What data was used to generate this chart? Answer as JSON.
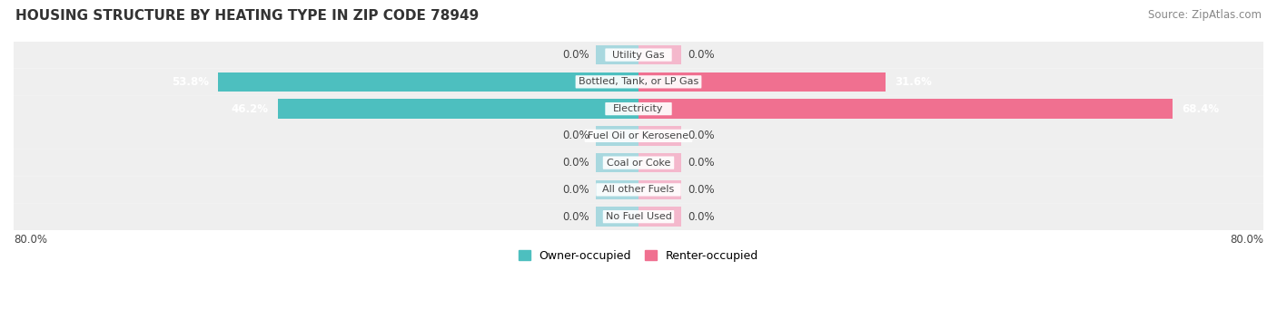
{
  "title": "HOUSING STRUCTURE BY HEATING TYPE IN ZIP CODE 78949",
  "source": "Source: ZipAtlas.com",
  "categories": [
    "Utility Gas",
    "Bottled, Tank, or LP Gas",
    "Electricity",
    "Fuel Oil or Kerosene",
    "Coal or Coke",
    "All other Fuels",
    "No Fuel Used"
  ],
  "owner_values": [
    0.0,
    53.8,
    46.2,
    0.0,
    0.0,
    0.0,
    0.0
  ],
  "renter_values": [
    0.0,
    31.6,
    68.4,
    0.0,
    0.0,
    0.0,
    0.0
  ],
  "owner_color": "#4dbfbf",
  "renter_color": "#f07090",
  "owner_color_light": "#a8d8df",
  "renter_color_light": "#f4b8cc",
  "row_bg_color": "#efefef",
  "row_bg_color2": "#e8e8e8",
  "label_color": "#444444",
  "title_color": "#333333",
  "axis_limit": 80.0,
  "stub_size": 5.5,
  "legend_owner": "Owner-occupied",
  "legend_renter": "Renter-occupied",
  "figsize": [
    14.06,
    3.41
  ],
  "dpi": 100
}
